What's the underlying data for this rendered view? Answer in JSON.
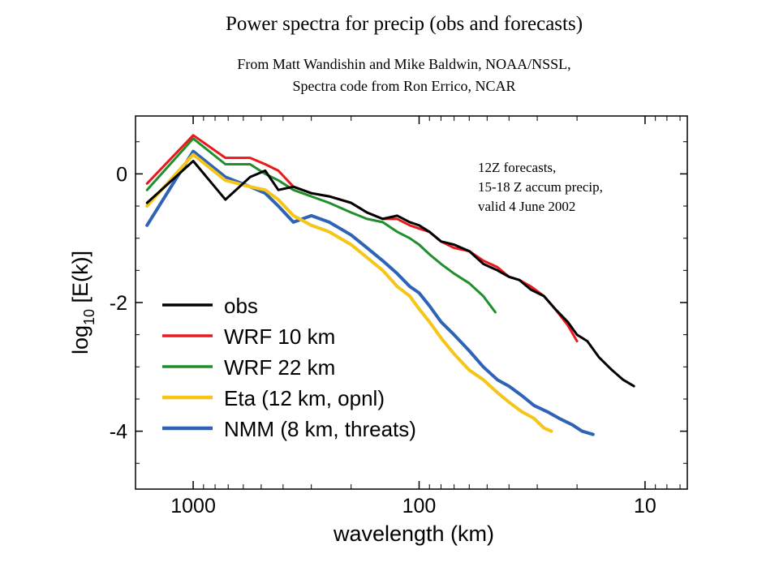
{
  "title": "Power spectra for precip (obs and forecasts)",
  "subtitle_lines": [
    "From Matt Wandishin and Mike Baldwin, NOAA/NSSL,",
    "Spectra code from Ron Errico, NCAR"
  ],
  "annotation_lines": [
    "12Z forecasts,",
    "15-18 Z accum precip,",
    "valid 4 June 2002"
  ],
  "chart_data": {
    "type": "line",
    "xlabel": "wavelength (km)",
    "ylabel_base": "log",
    "ylabel_sub": "10",
    "ylabel_rest": " [E(k)]",
    "x_scale": "log",
    "x_reversed": true,
    "xlim": [
      1800,
      6.5
    ],
    "ylim": [
      -4.9,
      0.9
    ],
    "x_ticks": [
      1000,
      100,
      10
    ],
    "x_tick_labels": [
      "1000",
      "100",
      "10"
    ],
    "y_ticks": [
      0,
      -2,
      -4
    ],
    "y_tick_labels": [
      "0",
      "-2",
      "-4"
    ],
    "grid": false,
    "legend_position": "bottom-left",
    "series": [
      {
        "name": "obs",
        "color": "#000000",
        "x": [
          1600,
          1000,
          720,
          560,
          480,
          420,
          360,
          300,
          250,
          200,
          170,
          145,
          125,
          110,
          100,
          90,
          80,
          70,
          60,
          52,
          45,
          40,
          36,
          32,
          28,
          25,
          22,
          20,
          18,
          16,
          14,
          12.5,
          11.2
        ],
        "y": [
          -0.45,
          0.2,
          -0.4,
          -0.05,
          0.05,
          -0.25,
          -0.2,
          -0.3,
          -0.35,
          -0.45,
          -0.6,
          -0.7,
          -0.65,
          -0.75,
          -0.8,
          -0.9,
          -1.05,
          -1.1,
          -1.2,
          -1.4,
          -1.5,
          -1.6,
          -1.65,
          -1.8,
          -1.9,
          -2.1,
          -2.3,
          -2.5,
          -2.6,
          -2.85,
          -3.05,
          -3.2,
          -3.3
        ]
      },
      {
        "name": "WRF 10 km",
        "color": "#e8191c",
        "x": [
          1600,
          1000,
          720,
          560,
          480,
          420,
          360,
          300,
          250,
          200,
          170,
          145,
          125,
          110,
          100,
          90,
          80,
          70,
          60,
          52,
          45,
          40,
          36,
          32,
          28,
          25,
          22,
          20
        ],
        "y": [
          -0.15,
          0.6,
          0.25,
          0.25,
          0.15,
          0.05,
          -0.2,
          -0.3,
          -0.35,
          -0.45,
          -0.6,
          -0.7,
          -0.7,
          -0.8,
          -0.85,
          -0.9,
          -1.05,
          -1.15,
          -1.2,
          -1.35,
          -1.45,
          -1.6,
          -1.65,
          -1.75,
          -1.9,
          -2.1,
          -2.35,
          -2.6
        ]
      },
      {
        "name": "WRF 22 km",
        "color": "#1f8f2b",
        "x": [
          1600,
          1000,
          720,
          560,
          480,
          420,
          360,
          300,
          250,
          200,
          170,
          145,
          125,
          110,
          100,
          90,
          80,
          70,
          60,
          52,
          46
        ],
        "y": [
          -0.25,
          0.55,
          0.15,
          0.15,
          0.0,
          -0.1,
          -0.25,
          -0.35,
          -0.45,
          -0.6,
          -0.7,
          -0.75,
          -0.9,
          -1.0,
          -1.1,
          -1.25,
          -1.4,
          -1.55,
          -1.7,
          -1.9,
          -2.15
        ]
      },
      {
        "name": "Eta (12 km, opnl)",
        "color": "#f5c518",
        "x": [
          1600,
          1000,
          720,
          560,
          480,
          420,
          360,
          300,
          250,
          200,
          170,
          145,
          125,
          110,
          100,
          90,
          80,
          70,
          60,
          52,
          45,
          40,
          35,
          31,
          28,
          26
        ],
        "y": [
          -0.5,
          0.3,
          -0.1,
          -0.2,
          -0.25,
          -0.4,
          -0.65,
          -0.8,
          -0.9,
          -1.1,
          -1.3,
          -1.5,
          -1.75,
          -1.9,
          -2.1,
          -2.3,
          -2.55,
          -2.8,
          -3.05,
          -3.2,
          -3.4,
          -3.55,
          -3.7,
          -3.8,
          -3.95,
          -4.0
        ]
      },
      {
        "name": "NMM (8 km, threats)",
        "color": "#2f63b6",
        "x": [
          1600,
          1000,
          720,
          560,
          480,
          420,
          360,
          300,
          250,
          200,
          170,
          145,
          125,
          110,
          100,
          90,
          80,
          70,
          60,
          52,
          45,
          40,
          35,
          31,
          27,
          24,
          21,
          19,
          17
        ],
        "y": [
          -0.8,
          0.35,
          -0.05,
          -0.2,
          -0.3,
          -0.5,
          -0.75,
          -0.65,
          -0.75,
          -0.95,
          -1.15,
          -1.35,
          -1.55,
          -1.75,
          -1.85,
          -2.05,
          -2.3,
          -2.5,
          -2.75,
          -3.0,
          -3.2,
          -3.3,
          -3.45,
          -3.6,
          -3.7,
          -3.8,
          -3.9,
          -4.0,
          -4.05
        ]
      }
    ]
  }
}
